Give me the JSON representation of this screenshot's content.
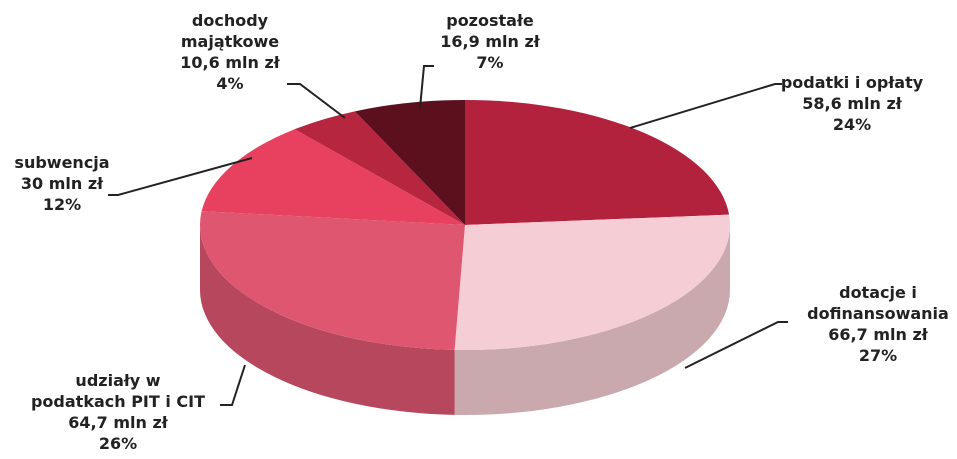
{
  "chart_data": {
    "type": "pie",
    "categories": [
      "podatki i opłaty",
      "dotacje i\ndofinansowania",
      "udziały w\npodatkach PIT i CIT",
      "subwencja",
      "dochody\nmajątkowe",
      "pozostałe"
    ],
    "values": [
      58.6,
      66.7,
      64.7,
      30,
      10.6,
      16.9
    ],
    "value_labels": [
      "58,6 mln zł",
      "66,7 mln zł",
      "64,7 mln zł",
      "30 mln zł",
      "10,6 mln zł",
      "16,9 mln zł"
    ],
    "percent_labels": [
      "24%",
      "27%",
      "26%",
      "12%",
      "4%",
      "7%"
    ],
    "colors": [
      "#b3223d",
      "#f5cdd4",
      "#de5670",
      "#e8415f",
      "#b7263f",
      "#5c101d"
    ]
  }
}
